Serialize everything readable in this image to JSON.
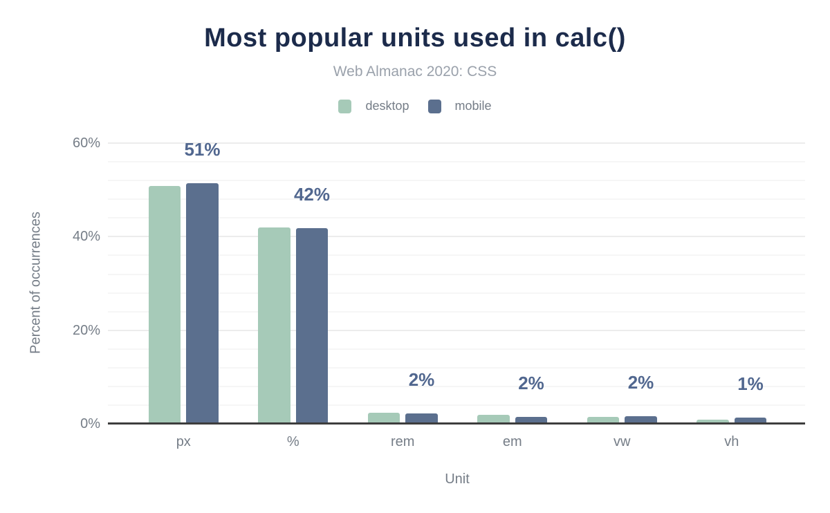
{
  "chart_data": {
    "type": "bar",
    "title": "Most popular units used in calc()",
    "subtitle": "Web Almanac 2020: CSS",
    "xlabel": "Unit",
    "ylabel": "Percent of occurrences",
    "categories": [
      "px",
      "%",
      "rem",
      "em",
      "vw",
      "vh"
    ],
    "series": [
      {
        "name": "desktop",
        "color": "#a6cab8",
        "values": [
          50.9,
          42.0,
          2.4,
          1.9,
          1.5,
          0.9
        ]
      },
      {
        "name": "mobile",
        "color": "#5b6f8e",
        "values": [
          51.4,
          41.9,
          2.2,
          1.5,
          1.6,
          1.3
        ]
      }
    ],
    "value_labels": [
      "51%",
      "42%",
      "2%",
      "2%",
      "2%",
      "1%"
    ],
    "y_axis": {
      "min": 0,
      "max": 60,
      "ticks": [
        {
          "value": 0,
          "label": "0%"
        },
        {
          "value": 20,
          "label": "20%"
        },
        {
          "value": 40,
          "label": "40%"
        },
        {
          "value": 60,
          "label": "60%"
        }
      ],
      "minor_grid_step": 4
    },
    "legend_position": "top",
    "grid": "horizontal",
    "colors": {
      "title": "#1c2b4b",
      "subtitle": "#9aa1ab",
      "axis_text": "#757d87",
      "value_label": "#51678f",
      "axis_line": "#3d3d3d",
      "grid_minor": "#f6f6f6",
      "grid_major": "#ececec",
      "background": "#ffffff"
    }
  }
}
